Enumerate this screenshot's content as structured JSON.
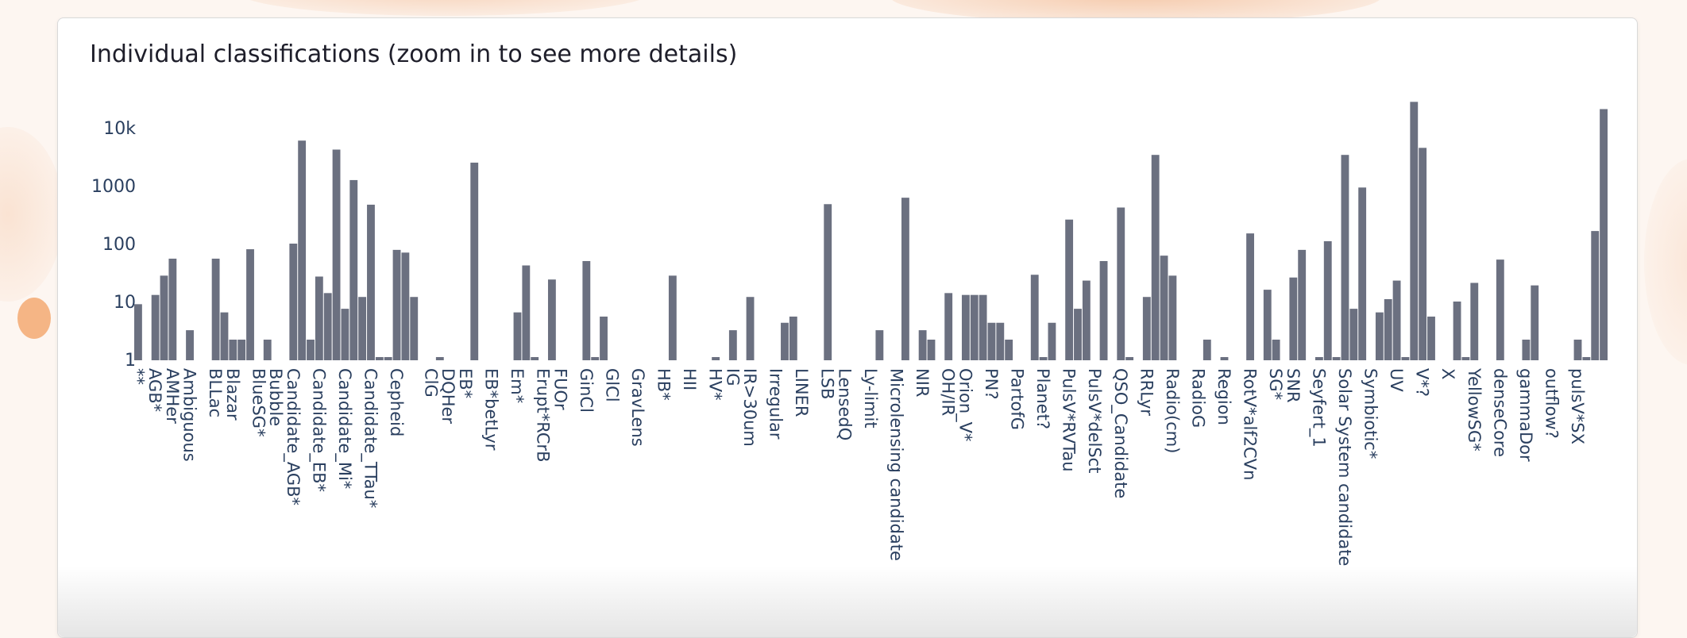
{
  "chart_data": {
    "type": "bar",
    "title": "Individual classifications (zoom in to see more details)",
    "xlabel": "",
    "ylabel": "",
    "y_scale": "log",
    "ylim": [
      0.5,
      40000
    ],
    "yticks": [
      {
        "value": 1,
        "label": "1"
      },
      {
        "value": 10,
        "label": "10"
      },
      {
        "value": 100,
        "label": "100"
      },
      {
        "value": 1000,
        "label": "1000"
      },
      {
        "value": 10000,
        "label": "10k"
      }
    ],
    "bar_color": "#6b7080",
    "bars": [
      {
        "value": 9,
        "label": "**"
      },
      {
        "value": null
      },
      {
        "value": 13,
        "label": "AGB*"
      },
      {
        "value": 28
      },
      {
        "value": 55,
        "label": "AMHer"
      },
      {
        "value": null
      },
      {
        "value": 3.2,
        "label": "Ambiguous"
      },
      {
        "value": null
      },
      {
        "value": null
      },
      {
        "value": 55,
        "label": "BLLac"
      },
      {
        "value": 6.5
      },
      {
        "value": 2.2,
        "label": "Blazar"
      },
      {
        "value": 2.2
      },
      {
        "value": 80
      },
      {
        "value": null,
        "label": "BlueSG*"
      },
      {
        "value": 2.2
      },
      {
        "value": null,
        "label": "Bubble"
      },
      {
        "value": null
      },
      {
        "value": 100,
        "label": "Candidate_AGB*"
      },
      {
        "value": 6000
      },
      {
        "value": 2.2
      },
      {
        "value": 27,
        "label": "Candidate_EB*"
      },
      {
        "value": 14
      },
      {
        "value": 4200
      },
      {
        "value": 7.5,
        "label": "Candidate_Mi*"
      },
      {
        "value": 1250
      },
      {
        "value": 12
      },
      {
        "value": 470,
        "label": "Candidate_TTau*"
      },
      {
        "value": 1.1
      },
      {
        "value": 1.1
      },
      {
        "value": 78,
        "label": "Cepheid"
      },
      {
        "value": 70
      },
      {
        "value": 12
      },
      {
        "value": null
      },
      {
        "value": null,
        "label": "ClG"
      },
      {
        "value": 1.1
      },
      {
        "value": null,
        "label": "DQHer"
      },
      {
        "value": null
      },
      {
        "value": null,
        "label": "EB*"
      },
      {
        "value": 2500
      },
      {
        "value": null
      },
      {
        "value": null,
        "label": "EB*betLyr"
      },
      {
        "value": null
      },
      {
        "value": null
      },
      {
        "value": 6.5,
        "label": "Em*"
      },
      {
        "value": 42
      },
      {
        "value": 1.1
      },
      {
        "value": null,
        "label": "Erupt*RCrB"
      },
      {
        "value": 24
      },
      {
        "value": null,
        "label": "FUOr"
      },
      {
        "value": null
      },
      {
        "value": null
      },
      {
        "value": 50,
        "label": "GinCl"
      },
      {
        "value": 1.1
      },
      {
        "value": 5.5
      },
      {
        "value": null,
        "label": "GlCl"
      },
      {
        "value": null
      },
      {
        "value": null
      },
      {
        "value": null,
        "label": "GravLens"
      },
      {
        "value": null
      },
      {
        "value": null
      },
      {
        "value": null,
        "label": "HB*"
      },
      {
        "value": 28
      },
      {
        "value": null
      },
      {
        "value": null,
        "label": "HII"
      },
      {
        "value": null
      },
      {
        "value": null
      },
      {
        "value": 1.1,
        "label": "HV*"
      },
      {
        "value": null
      },
      {
        "value": 3.2,
        "label": "IG"
      },
      {
        "value": null
      },
      {
        "value": 12,
        "label": "IR>30um"
      },
      {
        "value": null
      },
      {
        "value": null
      },
      {
        "value": null,
        "label": "Irregular"
      },
      {
        "value": 4.3
      },
      {
        "value": 5.5
      },
      {
        "value": null,
        "label": "LINER"
      },
      {
        "value": null
      },
      {
        "value": null
      },
      {
        "value": 480,
        "label": "LSB"
      },
      {
        "value": null
      },
      {
        "value": null,
        "label": "LensedQ"
      },
      {
        "value": null
      },
      {
        "value": null
      },
      {
        "value": null,
        "label": "Ly-limit"
      },
      {
        "value": 3.2
      },
      {
        "value": null
      },
      {
        "value": null,
        "label": "Microlensing candidate"
      },
      {
        "value": 620
      },
      {
        "value": null
      },
      {
        "value": 3.2,
        "label": "NIR"
      },
      {
        "value": 2.2
      },
      {
        "value": null
      },
      {
        "value": 14,
        "label": "OH/IR"
      },
      {
        "value": null
      },
      {
        "value": 13,
        "label": "Orion_V*"
      },
      {
        "value": 13
      },
      {
        "value": 13
      },
      {
        "value": 4.3,
        "label": "PN?"
      },
      {
        "value": 4.3
      },
      {
        "value": 2.2
      },
      {
        "value": null,
        "label": "PartofG"
      },
      {
        "value": null
      },
      {
        "value": 29
      },
      {
        "value": 1.1,
        "label": "Planet?"
      },
      {
        "value": 4.3
      },
      {
        "value": null
      },
      {
        "value": 260,
        "label": "PulsV*RVTau"
      },
      {
        "value": 7.5
      },
      {
        "value": 23
      },
      {
        "value": null,
        "label": "PulsV*delSct"
      },
      {
        "value": 50
      },
      {
        "value": null
      },
      {
        "value": 420,
        "label": "QSO_Candidate"
      },
      {
        "value": 1.1
      },
      {
        "value": null
      },
      {
        "value": 12,
        "label": "RRLyr"
      },
      {
        "value": 3400
      },
      {
        "value": 62
      },
      {
        "value": 28,
        "label": "Radio(cm)"
      },
      {
        "value": null
      },
      {
        "value": null
      },
      {
        "value": null,
        "label": "RadioG"
      },
      {
        "value": 2.2
      },
      {
        "value": null
      },
      {
        "value": 1.1,
        "label": "Region"
      },
      {
        "value": null
      },
      {
        "value": null
      },
      {
        "value": 150,
        "label": "RotV*alf2CVn"
      },
      {
        "value": null
      },
      {
        "value": 16
      },
      {
        "value": 2.2,
        "label": "SG*"
      },
      {
        "value": null
      },
      {
        "value": 26,
        "label": "SNR"
      },
      {
        "value": 78
      },
      {
        "value": null
      },
      {
        "value": 1.1,
        "label": "Seyfert_1"
      },
      {
        "value": 110
      },
      {
        "value": 1.1
      },
      {
        "value": 3400,
        "label": "Solar System candidate"
      },
      {
        "value": 7.5
      },
      {
        "value": 930
      },
      {
        "value": null,
        "label": "Symbiotic*"
      },
      {
        "value": 6.5
      },
      {
        "value": 11
      },
      {
        "value": 23,
        "label": "UV"
      },
      {
        "value": 1.1
      },
      {
        "value": 28000
      },
      {
        "value": 4500,
        "label": "V*?"
      },
      {
        "value": 5.5
      },
      {
        "value": null
      },
      {
        "value": null,
        "label": "X"
      },
      {
        "value": 10
      },
      {
        "value": 1.1
      },
      {
        "value": 21,
        "label": "YellowSG*"
      },
      {
        "value": null
      },
      {
        "value": null
      },
      {
        "value": 53,
        "label": "denseCore"
      },
      {
        "value": null
      },
      {
        "value": null
      },
      {
        "value": 2.2,
        "label": "gammaDor"
      },
      {
        "value": 19
      },
      {
        "value": null
      },
      {
        "value": null,
        "label": "outflow?"
      },
      {
        "value": null
      },
      {
        "value": null
      },
      {
        "value": 2.2,
        "label": "pulsV*SX"
      },
      {
        "value": 1.1
      },
      {
        "value": 165
      },
      {
        "value": 21000
      }
    ]
  }
}
